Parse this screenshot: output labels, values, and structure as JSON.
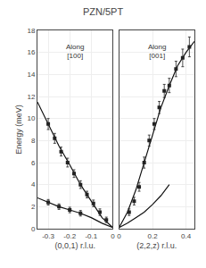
{
  "chart_data": [
    {
      "type": "line",
      "title": "PZN/5PT",
      "x_label": "(0,0,1) r.l.u.",
      "y_label": "Energy (meV)",
      "xlim": [
        -0.35,
        0.0
      ],
      "ylim": [
        0,
        18
      ],
      "xticks": [
        -0.3,
        -0.2,
        -0.1,
        0
      ],
      "yticks": [
        0,
        2,
        4,
        6,
        8,
        10,
        12,
        14,
        16,
        18
      ],
      "annotations": [
        {
          "text": "Along\n[100]",
          "x": -0.175,
          "y": 17.0
        }
      ],
      "series": [
        {
          "type": "line",
          "color": "#111111",
          "line_style": "solid",
          "x": [
            -0.35,
            -0.3,
            -0.25,
            -0.2,
            -0.15,
            -0.1,
            -0.05,
            0.0
          ],
          "values": [
            11.5,
            9.5,
            7.5,
            5.8,
            4.0,
            2.5,
            1.0,
            0.1
          ]
        },
        {
          "type": "line",
          "color": "#111111",
          "line_style": "solid",
          "x": [
            -0.35,
            -0.3,
            -0.25,
            -0.2,
            -0.15,
            -0.1,
            -0.05,
            0.0
          ],
          "values": [
            2.8,
            2.4,
            2.0,
            1.7,
            1.4,
            1.0,
            0.5,
            0.1
          ]
        },
        {
          "type": "scatter",
          "color": "#222222",
          "marker": "square",
          "x": [
            -0.3,
            -0.27,
            -0.24,
            -0.21,
            -0.18,
            -0.15,
            -0.12,
            -0.09,
            -0.06,
            -0.03
          ],
          "values": [
            9.5,
            8.2,
            7.0,
            6.0,
            5.0,
            4.0,
            3.1,
            2.3,
            1.5,
            0.8
          ],
          "errors": [
            0.5,
            0.45,
            0.4,
            0.4,
            0.35,
            0.35,
            0.3,
            0.3,
            0.3,
            0.25
          ]
        },
        {
          "type": "scatter",
          "color": "#222222",
          "marker": "square",
          "x": [
            -0.3,
            -0.25,
            -0.2,
            -0.15
          ],
          "values": [
            2.4,
            2.0,
            1.7,
            1.4
          ],
          "errors": [
            0.25,
            0.25,
            0.25,
            0.25
          ]
        }
      ]
    },
    {
      "type": "line",
      "x_label": "(2,2,z) r.l.u.",
      "tick_labels": "x",
      "xlim": [
        0.0,
        0.45
      ],
      "ylim": [
        0,
        18
      ],
      "xticks": [
        0,
        0.2,
        0.4
      ],
      "yticks": [
        0,
        2,
        4,
        6,
        8,
        10,
        12,
        14,
        16,
        18
      ],
      "annotations": [
        {
          "text": "Along\n[001]",
          "x": 0.225,
          "y": 17.0
        }
      ],
      "series": [
        {
          "type": "line",
          "color": "#111111",
          "line_style": "solid",
          "x": [
            0.0,
            0.05,
            0.1,
            0.15,
            0.2,
            0.25,
            0.3,
            0.35,
            0.4,
            0.45
          ],
          "values": [
            0.1,
            1.5,
            3.5,
            6.0,
            8.5,
            11.0,
            13.0,
            14.8,
            16.0,
            17.0
          ]
        },
        {
          "type": "line",
          "color": "#111111",
          "line_style": "solid",
          "x": [
            0.0,
            0.05,
            0.1,
            0.15,
            0.2,
            0.25,
            0.3
          ],
          "values": [
            0.1,
            0.5,
            1.0,
            1.5,
            2.2,
            3.0,
            4.0
          ]
        },
        {
          "type": "scatter",
          "color": "#222222",
          "marker": "square",
          "x": [
            0.06,
            0.09,
            0.12,
            0.15,
            0.18,
            0.21,
            0.24,
            0.27,
            0.3,
            0.34,
            0.38,
            0.42
          ],
          "values": [
            1.5,
            2.5,
            3.8,
            6.0,
            8.0,
            9.5,
            11.0,
            12.5,
            13.0,
            14.5,
            15.5,
            16.5
          ],
          "errors": [
            0.3,
            0.35,
            0.4,
            0.5,
            0.5,
            0.5,
            0.55,
            0.6,
            0.65,
            0.7,
            0.8,
            0.9
          ]
        }
      ]
    }
  ]
}
